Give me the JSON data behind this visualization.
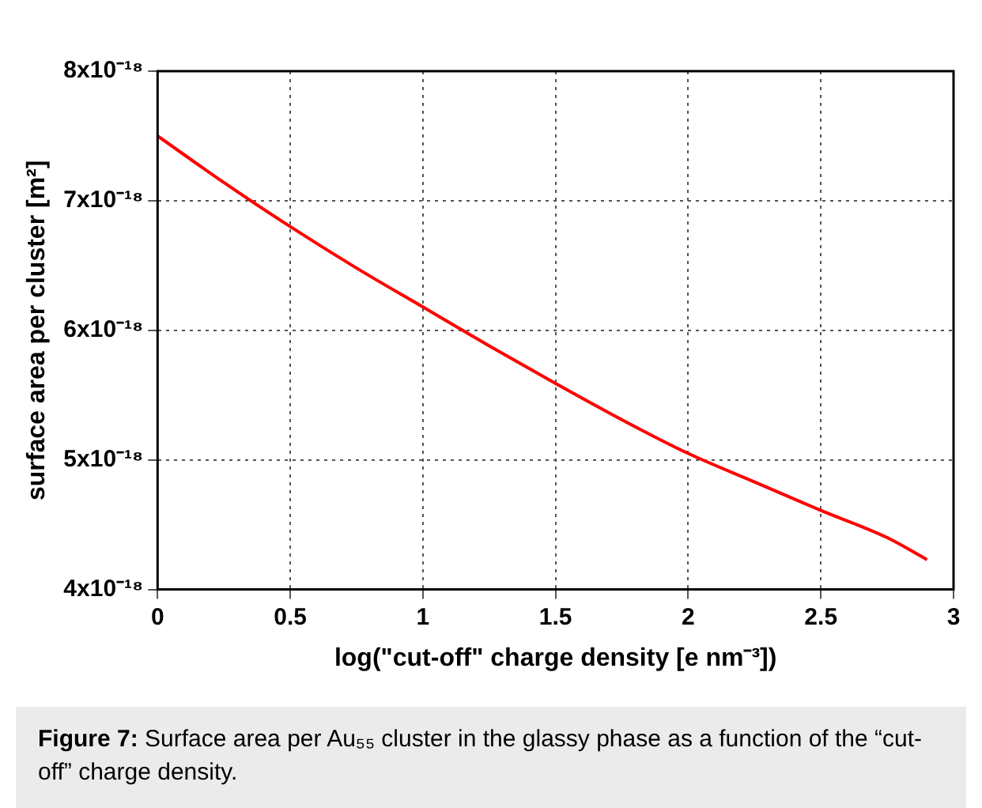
{
  "chart_data": {
    "type": "line",
    "xlabel": "log(\"cut-off\" charge density [e nm⁻³])",
    "ylabel": "surface area per cluster [m²]",
    "x": [
      0,
      0.25,
      0.5,
      0.75,
      1,
      1.25,
      1.5,
      1.75,
      2,
      2.25,
      2.5,
      2.75,
      2.9
    ],
    "series": [
      {
        "color": "#ff0000",
        "values": [
          7.5e-18,
          7.14e-18,
          6.8e-18,
          6.48e-18,
          6.18e-18,
          5.88e-18,
          5.59e-18,
          5.31e-18,
          5.05e-18,
          4.83e-18,
          4.61e-18,
          4.4e-18,
          4.23e-18
        ]
      }
    ],
    "xlim": [
      0,
      3
    ],
    "xticks": [
      0,
      0.5,
      1,
      1.5,
      2,
      2.5,
      3
    ],
    "ylim": [
      4e-18,
      8e-18
    ],
    "yticks": [
      {
        "value": 4e-18,
        "label": "4x10⁻¹⁸"
      },
      {
        "value": 5e-18,
        "label": "5x10⁻¹⁸"
      },
      {
        "value": 6e-18,
        "label": "6x10⁻¹⁸"
      },
      {
        "value": 7e-18,
        "label": "7x10⁻¹⁸"
      },
      {
        "value": 8e-18,
        "label": "8x10⁻¹⁸"
      }
    ],
    "grid": true,
    "legend": false,
    "marker": "none",
    "line_style": "solid",
    "annotations": [
      "Figure 7: Surface area per Au₅₅ cluster in the glassy phase as a function of the “cut-off” charge density."
    ]
  }
}
